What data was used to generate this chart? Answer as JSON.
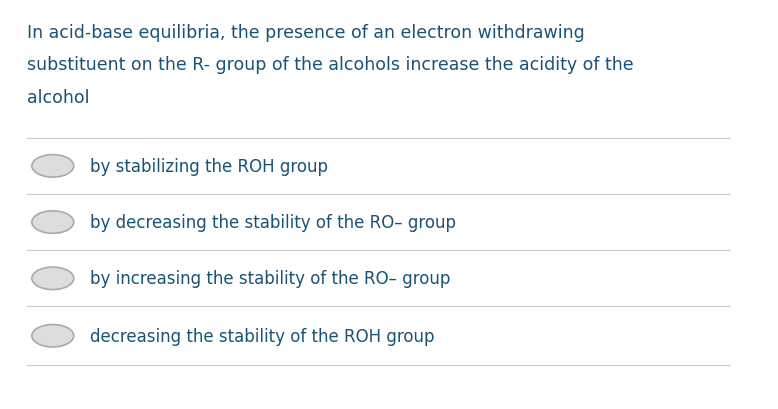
{
  "background_color": "#ffffff",
  "question_text_line1": "In acid-base equilibria, the presence of an electron withdrawing",
  "question_text_line2": "substituent on the R- group of the alcohols increase the acidity of the",
  "question_text_line3": "alcohol",
  "question_color": "#1a5276",
  "options": [
    "by stabilizing the ROH group",
    "by decreasing the stability of the RO– group",
    "by increasing the stability of the RO– group",
    "decreasing the stability of the ROH group"
  ],
  "option_color": "#1a5276",
  "separator_color": "#cccccc",
  "radio_outer_color": "#aaaaaa",
  "radio_inner_color": "#dddddd",
  "fig_width": 7.78,
  "fig_height": 4.1,
  "dpi": 100
}
